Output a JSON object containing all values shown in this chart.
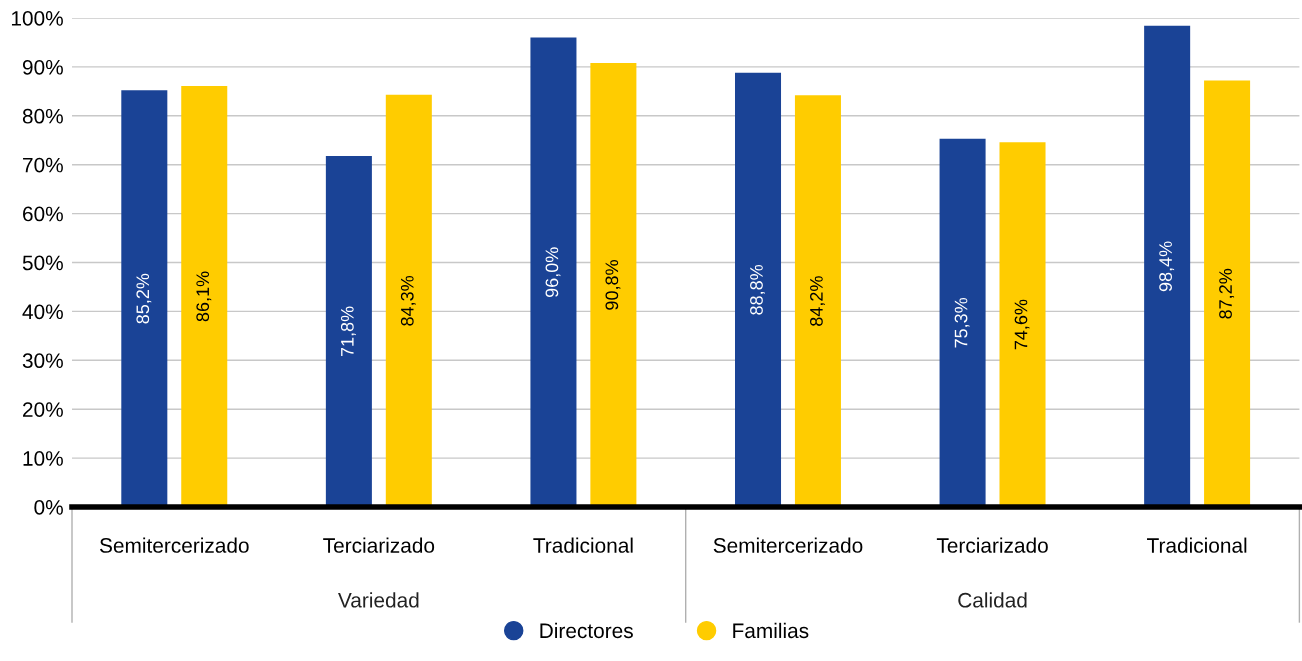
{
  "chart_data": {
    "type": "bar",
    "categories": [
      "Semitercerizado",
      "Terciarizado",
      "Tradicional",
      "Semitercerizado",
      "Terciarizado",
      "Tradicional"
    ],
    "series": [
      {
        "name": "Directores",
        "color": "#1a4396",
        "values": [
          85.2,
          71.8,
          96.0,
          88.8,
          75.3,
          98.4
        ],
        "value_labels": [
          "85,2%",
          "71,8%",
          "96,0%",
          "88,8%",
          "75,3%",
          "98,4%"
        ]
      },
      {
        "name": "Familias",
        "color": "#ffcc00",
        "values": [
          86.1,
          84.3,
          90.8,
          84.2,
          74.6,
          87.2
        ],
        "value_labels": [
          "86,1%",
          "84,3%",
          "90,8%",
          "84,2%",
          "74,6%",
          "87,2%"
        ]
      }
    ],
    "annotations": [
      "Variedad",
      "Calidad"
    ],
    "ylim": [
      0,
      100
    ],
    "yticks": [
      {
        "value": 0,
        "label": "0%"
      },
      {
        "value": 10,
        "label": "10%"
      },
      {
        "value": 20,
        "label": "20%"
      },
      {
        "value": 30,
        "label": "30%"
      },
      {
        "value": 40,
        "label": "40%"
      },
      {
        "value": 50,
        "label": "50%"
      },
      {
        "value": 60,
        "label": "60%"
      },
      {
        "value": 70,
        "label": "70%"
      },
      {
        "value": 80,
        "label": "80%"
      },
      {
        "value": 90,
        "label": "90%"
      },
      {
        "value": 100,
        "label": "100%"
      }
    ],
    "grid": "y",
    "legend": "bottom"
  }
}
